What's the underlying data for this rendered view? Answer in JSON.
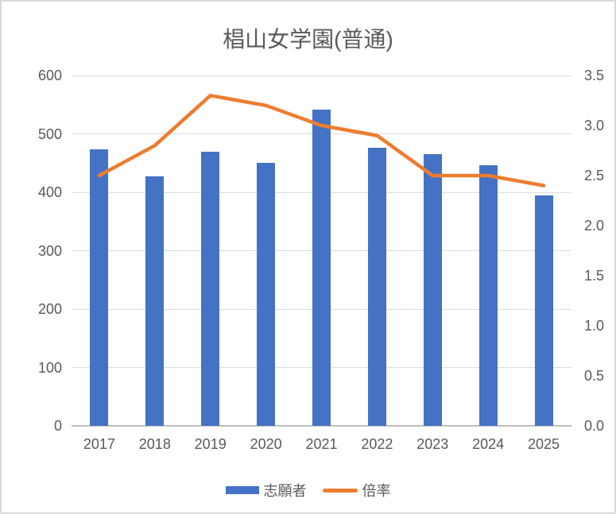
{
  "window": {
    "background": "#FFFFFF",
    "border_color": "#D9D9D9"
  },
  "chart_data": {
    "type": "combo-bar-line",
    "title": "椙山女学園(普通)",
    "categories": [
      "2017",
      "2018",
      "2019",
      "2020",
      "2021",
      "2022",
      "2023",
      "2024",
      "2025"
    ],
    "series": [
      {
        "name": "志願者",
        "type": "bar",
        "axis": "left",
        "color": "#4472C4",
        "values": [
          473,
          427,
          469,
          450,
          541,
          476,
          466,
          446,
          394
        ]
      },
      {
        "name": "倍率",
        "type": "line",
        "axis": "right",
        "color": "#ED7D31",
        "values": [
          2.5,
          2.8,
          3.3,
          3.2,
          3.0,
          2.9,
          2.5,
          2.5,
          2.4
        ]
      }
    ],
    "y_left": {
      "min": 0,
      "max": 600,
      "ticks": [
        "600",
        "500",
        "400",
        "300",
        "200",
        "100",
        "0"
      ]
    },
    "y_right": {
      "min": 0,
      "max": 3.5,
      "ticks": [
        "3.5",
        "3.0",
        "2.5",
        "2.0",
        "1.5",
        "1.0",
        "0.5",
        "0.0"
      ]
    },
    "grid": true,
    "legend_position": "bottom",
    "text_color": "#595959",
    "gridline_color": "#DCDCDC"
  }
}
